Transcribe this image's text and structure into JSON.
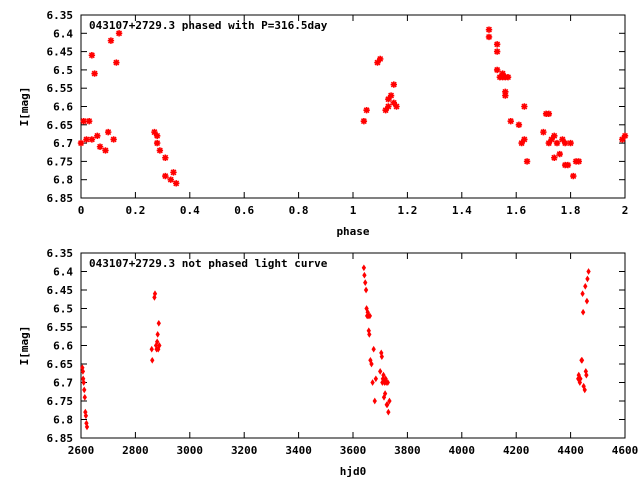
{
  "chart_data": [
    {
      "type": "scatter",
      "title": "043107+2729.3 phased with P=316.5day",
      "xlabel": "phase",
      "ylabel": "I[mag]",
      "xlim": [
        0,
        2
      ],
      "ylim": [
        6.35,
        6.85
      ],
      "y_inverted": true,
      "xticks": [
        "0",
        "0.2",
        "0.4",
        "0.6",
        "0.8",
        "1",
        "1.2",
        "1.4",
        "1.6",
        "1.8",
        "2"
      ],
      "yticks": [
        "6.35",
        "6.4",
        "6.45",
        "6.5",
        "6.55",
        "6.6",
        "6.65",
        "6.7",
        "6.75",
        "6.8",
        "6.85"
      ],
      "grid": false,
      "marker_color": "#ff0000",
      "marker": "star",
      "points": [
        [
          0.0,
          6.7
        ],
        [
          0.01,
          6.64
        ],
        [
          0.02,
          6.69
        ],
        [
          0.03,
          6.64
        ],
        [
          0.04,
          6.69
        ],
        [
          0.04,
          6.46
        ],
        [
          0.05,
          6.51
        ],
        [
          0.06,
          6.68
        ],
        [
          0.07,
          6.71
        ],
        [
          0.09,
          6.72
        ],
        [
          0.1,
          6.67
        ],
        [
          0.11,
          6.42
        ],
        [
          0.12,
          6.69
        ],
        [
          0.13,
          6.48
        ],
        [
          0.14,
          6.4
        ],
        [
          0.27,
          6.67
        ],
        [
          0.28,
          6.7
        ],
        [
          0.28,
          6.68
        ],
        [
          0.29,
          6.72
        ],
        [
          0.31,
          6.74
        ],
        [
          0.31,
          6.79
        ],
        [
          0.33,
          6.8
        ],
        [
          0.34,
          6.78
        ],
        [
          0.35,
          6.81
        ],
        [
          1.04,
          6.64
        ],
        [
          1.05,
          6.61
        ],
        [
          1.09,
          6.48
        ],
        [
          1.1,
          6.47
        ],
        [
          1.12,
          6.61
        ],
        [
          1.13,
          6.6
        ],
        [
          1.13,
          6.58
        ],
        [
          1.14,
          6.57
        ],
        [
          1.15,
          6.59
        ],
        [
          1.15,
          6.54
        ],
        [
          1.16,
          6.6
        ],
        [
          1.5,
          6.39
        ],
        [
          1.5,
          6.41
        ],
        [
          1.53,
          6.43
        ],
        [
          1.53,
          6.45
        ],
        [
          1.53,
          6.5
        ],
        [
          1.54,
          6.52
        ],
        [
          1.55,
          6.51
        ],
        [
          1.55,
          6.52
        ],
        [
          1.56,
          6.52
        ],
        [
          1.56,
          6.56
        ],
        [
          1.56,
          6.57
        ],
        [
          1.57,
          6.52
        ],
        [
          1.58,
          6.64
        ],
        [
          1.61,
          6.65
        ],
        [
          1.62,
          6.7
        ],
        [
          1.63,
          6.6
        ],
        [
          1.64,
          6.75
        ],
        [
          1.63,
          6.69
        ],
        [
          1.7,
          6.67
        ],
        [
          1.71,
          6.62
        ],
        [
          1.72,
          6.62
        ],
        [
          1.72,
          6.7
        ],
        [
          1.73,
          6.69
        ],
        [
          1.74,
          6.68
        ],
        [
          1.74,
          6.74
        ],
        [
          1.75,
          6.7
        ],
        [
          1.76,
          6.73
        ],
        [
          1.77,
          6.69
        ],
        [
          1.78,
          6.7
        ],
        [
          1.78,
          6.76
        ],
        [
          1.79,
          6.76
        ],
        [
          1.8,
          6.7
        ],
        [
          1.81,
          6.79
        ],
        [
          1.82,
          6.75
        ],
        [
          1.83,
          6.75
        ],
        [
          1.99,
          6.69
        ],
        [
          2.0,
          6.68
        ]
      ]
    },
    {
      "type": "scatter",
      "title": "043107+2729.3 not phased light curve",
      "xlabel": "hjd0",
      "ylabel": "I[mag]",
      "xlim": [
        2600,
        4600
      ],
      "ylim": [
        6.35,
        6.85
      ],
      "y_inverted": true,
      "xticks": [
        "2600",
        "2800",
        "3000",
        "3200",
        "3400",
        "3600",
        "3800",
        "4000",
        "4200",
        "4400",
        "4600"
      ],
      "yticks": [
        "6.35",
        "6.4",
        "6.45",
        "6.5",
        "6.55",
        "6.6",
        "6.65",
        "6.7",
        "6.75",
        "6.8",
        "6.85"
      ],
      "grid": false,
      "marker_color": "#ff0000",
      "marker": "diamond",
      "points": [
        [
          2605,
          6.66
        ],
        [
          2607,
          6.67
        ],
        [
          2608,
          6.69
        ],
        [
          2610,
          6.7
        ],
        [
          2612,
          6.72
        ],
        [
          2614,
          6.74
        ],
        [
          2616,
          6.78
        ],
        [
          2618,
          6.79
        ],
        [
          2620,
          6.81
        ],
        [
          2622,
          6.82
        ],
        [
          2860,
          6.61
        ],
        [
          2862,
          6.64
        ],
        [
          2870,
          6.47
        ],
        [
          2872,
          6.46
        ],
        [
          2876,
          6.6
        ],
        [
          2878,
          6.61
        ],
        [
          2880,
          6.59
        ],
        [
          2882,
          6.57
        ],
        [
          2884,
          6.61
        ],
        [
          2886,
          6.54
        ],
        [
          2888,
          6.6
        ],
        [
          3640,
          6.39
        ],
        [
          3642,
          6.41
        ],
        [
          3645,
          6.43
        ],
        [
          3648,
          6.45
        ],
        [
          3650,
          6.5
        ],
        [
          3652,
          6.52
        ],
        [
          3654,
          6.51
        ],
        [
          3656,
          6.52
        ],
        [
          3658,
          6.56
        ],
        [
          3660,
          6.57
        ],
        [
          3662,
          6.52
        ],
        [
          3664,
          6.64
        ],
        [
          3668,
          6.65
        ],
        [
          3672,
          6.7
        ],
        [
          3676,
          6.61
        ],
        [
          3680,
          6.75
        ],
        [
          3684,
          6.69
        ],
        [
          3700,
          6.67
        ],
        [
          3704,
          6.62
        ],
        [
          3706,
          6.63
        ],
        [
          3708,
          6.7
        ],
        [
          3710,
          6.69
        ],
        [
          3712,
          6.68
        ],
        [
          3714,
          6.74
        ],
        [
          3716,
          6.7
        ],
        [
          3718,
          6.73
        ],
        [
          3720,
          6.69
        ],
        [
          3722,
          6.7
        ],
        [
          3724,
          6.76
        ],
        [
          3726,
          6.76
        ],
        [
          3728,
          6.7
        ],
        [
          3730,
          6.78
        ],
        [
          3734,
          6.75
        ],
        [
          4428,
          6.69
        ],
        [
          4430,
          6.68
        ],
        [
          4434,
          6.7
        ],
        [
          4436,
          6.69
        ],
        [
          4440,
          6.64
        ],
        [
          4442,
          6.64
        ],
        [
          4444,
          6.46
        ],
        [
          4446,
          6.51
        ],
        [
          4448,
          6.71
        ],
        [
          4452,
          6.72
        ],
        [
          4454,
          6.44
        ],
        [
          4456,
          6.67
        ],
        [
          4458,
          6.68
        ],
        [
          4460,
          6.48
        ],
        [
          4462,
          6.42
        ],
        [
          4466,
          6.4
        ]
      ]
    }
  ]
}
